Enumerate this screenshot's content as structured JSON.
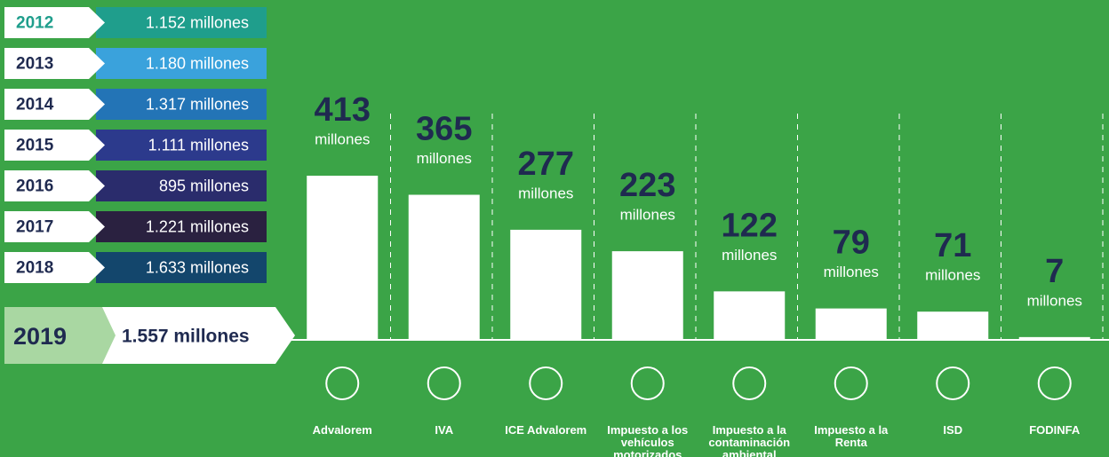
{
  "chart_data": {
    "type": "bar",
    "categories": [
      "Advalorem",
      "IVA",
      "ICE Advalorem",
      "Impuesto a los vehículos motorizados",
      "Impuesto a la contaminación ambiental",
      "Impuesto a la Renta",
      "ISD",
      "FODINFA"
    ],
    "values": [
      413,
      365,
      277,
      223,
      122,
      79,
      71,
      7
    ],
    "unit": "millones",
    "color": "#ffffff"
  },
  "year_totals": [
    {
      "year": "2012",
      "label": "1.152 millones",
      "color": "#1f9e8c"
    },
    {
      "year": "2013",
      "label": "1.180 millones",
      "color": "#3aa2dc"
    },
    {
      "year": "2014",
      "label": "1.317 millones",
      "color": "#2374b6"
    },
    {
      "year": "2015",
      "label": "1.111 millones",
      "color": "#2c3a8c"
    },
    {
      "year": "2016",
      "label": "895 millones",
      "color": "#2a2c6c"
    },
    {
      "year": "2017",
      "label": "1.221 millones",
      "color": "#2a2140"
    },
    {
      "year": "2018",
      "label": "1.633 millones",
      "color": "#13466c"
    }
  ],
  "current": {
    "year": "2019",
    "label": "1.557 millones"
  }
}
